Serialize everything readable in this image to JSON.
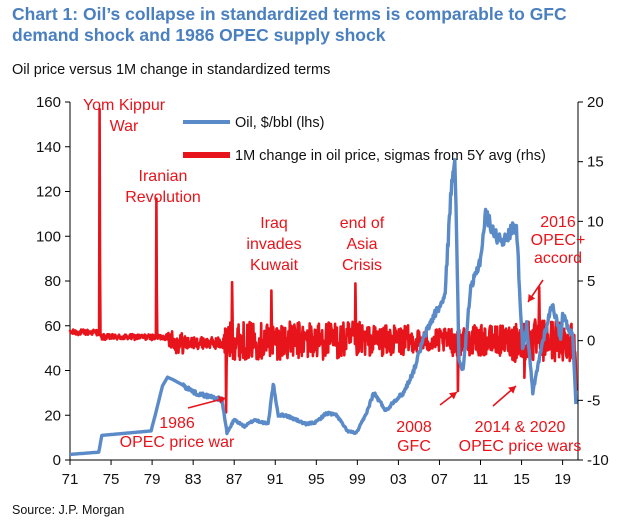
{
  "title": "Chart 1: Oil’s collapse in standardized terms is comparable to GFC demand shock and 1986 OPEC supply shock",
  "subtitle": "Oil price versus 1M change in standardized terms",
  "source": "Source: J.P. Morgan",
  "colors": {
    "oil": "#5b8ac8",
    "sigma": "#e8141b",
    "annotation": "#e8141b",
    "axis": "#000000"
  },
  "chart_data": {
    "type": "line",
    "x_tick_labels": [
      "71",
      "75",
      "79",
      "83",
      "87",
      "91",
      "95",
      "99",
      "03",
      "07",
      "11",
      "15",
      "19"
    ],
    "x_ticks": [
      1971,
      1975,
      1979,
      1983,
      1987,
      1991,
      1995,
      1999,
      2003,
      2007,
      2011,
      2015,
      2019
    ],
    "xlim": [
      1971,
      2020.5
    ],
    "ylim_left": [
      0,
      160
    ],
    "y_ticks_left": [
      0,
      20,
      40,
      60,
      80,
      100,
      120,
      140,
      160
    ],
    "ylim_right": [
      -10,
      20
    ],
    "y_ticks_right": [
      -10,
      -5,
      0,
      5,
      10,
      15,
      20
    ],
    "series": [
      {
        "name": "Oil, $/bbl (lhs)",
        "axis": "left",
        "x": [
          1971,
          1973.8,
          1974.1,
          1978.9,
          1979.3,
          1980,
          1980.5,
          1981,
          1981.8,
          1982.5,
          1983.2,
          1984,
          1985,
          1985.8,
          1986.3,
          1987,
          1988,
          1989,
          1990.3,
          1990.8,
          1991.3,
          1992,
          1993,
          1994,
          1995,
          1996,
          1997,
          1998,
          1998.9,
          1999.8,
          2000.6,
          2001.8,
          2002.5,
          2003.5,
          2004.5,
          2005.5,
          2006.5,
          2007.5,
          2008.2,
          2008.5,
          2008.9,
          2009.3,
          2010,
          2011,
          2011.5,
          2012.5,
          2013.5,
          2014,
          2014.5,
          2015.1,
          2015.5,
          2016.1,
          2017,
          2018,
          2018.8,
          2019,
          2019.5,
          2020,
          2020.3
        ],
        "values": [
          2.5,
          3.5,
          11,
          13,
          20,
          33,
          37,
          36,
          34,
          32,
          30,
          29,
          28,
          27,
          12,
          18,
          15,
          18,
          16,
          34,
          20,
          20,
          18,
          16,
          17,
          21,
          20,
          13,
          12,
          20,
          30,
          22,
          26,
          30,
          40,
          55,
          65,
          72,
          125,
          138,
          45,
          40,
          75,
          90,
          110,
          100,
          98,
          103,
          105,
          50,
          60,
          30,
          52,
          70,
          55,
          65,
          60,
          55,
          25
        ]
      },
      {
        "name": "1M change in oil price, sigmas from 5Y avg (rhs)",
        "axis": "right",
        "spikes": [
          {
            "x": 1973.9,
            "value": 19.4
          },
          {
            "x": 1979.4,
            "value": 11.9
          },
          {
            "x": 1986.2,
            "value": -6.0
          },
          {
            "x": 1986.8,
            "value": 4.9
          },
          {
            "x": 1990.6,
            "value": 4.2
          },
          {
            "x": 1998.8,
            "value": 4.8
          },
          {
            "x": 2008.8,
            "value": -4.2
          },
          {
            "x": 2015.3,
            "value": -3.1
          },
          {
            "x": 2016.7,
            "value": 4.5
          },
          {
            "x": 2020.3,
            "value": -4.2
          }
        ]
      }
    ],
    "annotations": [
      {
        "text": [
          "Yom Kippur",
          "War"
        ]
      },
      {
        "text": [
          "Iranian",
          "Revolution"
        ]
      },
      {
        "text": [
          "Iraq",
          "invades",
          "Kuwait"
        ]
      },
      {
        "text": [
          "end of",
          "Asia",
          "Crisis"
        ]
      },
      {
        "text": [
          "2016",
          "OPEC+",
          "accord"
        ]
      },
      {
        "text": [
          "1986",
          "OPEC price war"
        ]
      },
      {
        "text": [
          "2008",
          "GFC"
        ]
      },
      {
        "text": [
          "2014 & 2020",
          "OPEC price wars"
        ]
      }
    ]
  }
}
